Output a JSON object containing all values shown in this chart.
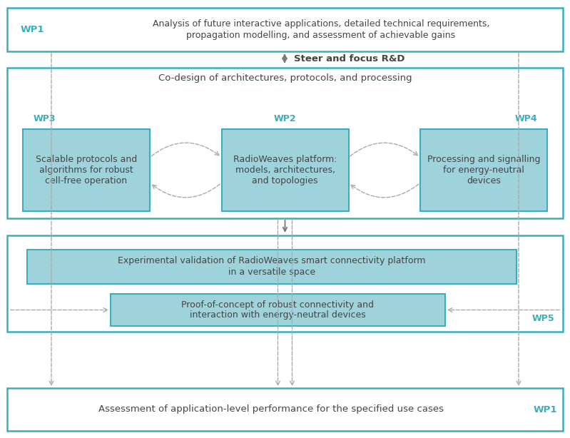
{
  "bg_color": "#ffffff",
  "border_color": "#3aaebd",
  "box_fill_light": "#9fd3dc",
  "text_color_dark": "#444444",
  "text_color_blue": "#3aaebd",
  "arrow_color_solid": "#777777",
  "arrow_color_dashed": "#aaaaaa",
  "wp1_top_label": "WP1",
  "wp1_top_text": "Analysis of future interactive applications, detailed technical requirements,\npropagation modelling, and assessment of achievable gains",
  "steer_text": "Steer and focus R&D",
  "codesign_label": "Co-design of architectures, protocols, and processing",
  "wp3_label": "WP3",
  "wp3_text": "Scalable protocols and\nalgorithms for robust\ncell-free operation",
  "wp2_label": "WP2",
  "wp2_text": "RadioWeaves platform:\nmodels, architectures,\nand topologies",
  "wp4_label": "WP4",
  "wp4_text": "Processing and signalling\nfor energy-neutral\ndevices",
  "exp_val_text": "Experimental validation of RadioWeaves smart connectivity platform\nin a versatile space",
  "proof_text": "Proof-of-concept of robust connectivity and\ninteraction with energy-neutral devices",
  "wp5_label": "WP5",
  "wp1_bot_label": "WP1",
  "wp1_bot_text": "Assessment of application-level performance for the specified use cases"
}
